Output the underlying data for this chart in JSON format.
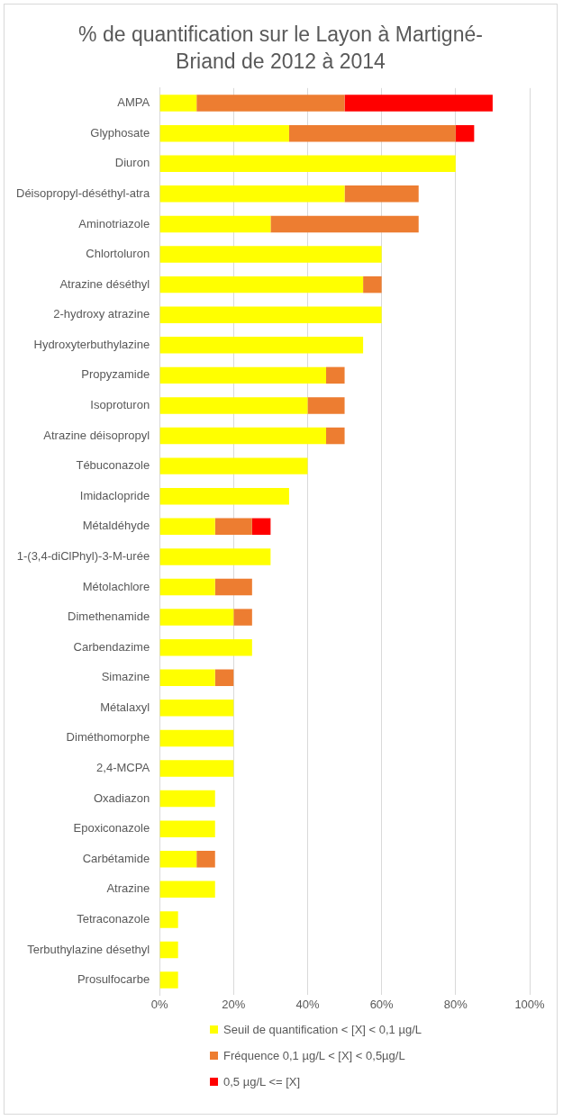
{
  "chart_data": {
    "type": "bar",
    "orientation": "horizontal",
    "stacked": true,
    "title": "% de quantification sur le Layon à Martigné-Briand de 2012 à 2014",
    "categories": [
      "AMPA",
      "Glyphosate",
      "Diuron",
      "Déisopropyl-déséthyl-atra",
      "Aminotriazole",
      "Chlortoluron",
      "Atrazine déséthyl",
      "2-hydroxy atrazine",
      "Hydroxyterbuthylazine",
      "Propyzamide",
      "Isoproturon",
      "Atrazine déisopropyl",
      "Tébuconazole",
      "Imidaclopride",
      "Métaldéhyde",
      "1-(3,4-diClPhyl)-3-M-urée",
      "Métolachlore",
      "Dimethenamide",
      "Carbendazime",
      "Simazine",
      "Métalaxyl",
      "Diméthomorphe",
      "2,4-MCPA",
      "Oxadiazon",
      "Epoxiconazole",
      "Carbétamide",
      "Atrazine",
      "Tetraconazole",
      "Terbuthylazine désethyl",
      "Prosulfocarbe"
    ],
    "series": [
      {
        "name": "Seuil de quantification < [X] < 0,1 µg/L",
        "color": "#ffff00",
        "values": [
          10,
          35,
          80,
          50,
          30,
          60,
          55,
          60,
          55,
          45,
          40,
          45,
          40,
          35,
          15,
          30,
          15,
          20,
          25,
          15,
          20,
          20,
          20,
          15,
          15,
          10,
          15,
          5,
          5,
          5
        ]
      },
      {
        "name": "Fréquence 0,1 µg/L < [X] < 0,5µg/L",
        "color": "#ed7d31",
        "values": [
          40,
          45,
          null,
          20,
          40,
          null,
          5,
          null,
          null,
          5,
          10,
          5,
          null,
          null,
          10,
          null,
          10,
          5,
          null,
          5,
          null,
          null,
          null,
          null,
          null,
          5,
          null,
          null,
          null,
          null
        ]
      },
      {
        "name": "0,5 µg/L <= [X]",
        "color": "#ff0000",
        "values": [
          40,
          5,
          null,
          null,
          null,
          null,
          null,
          null,
          null,
          null,
          null,
          null,
          null,
          null,
          5,
          null,
          null,
          null,
          null,
          null,
          null,
          null,
          null,
          null,
          null,
          null,
          null,
          null,
          null,
          null
        ]
      }
    ],
    "xlim": [
      0,
      100
    ],
    "xticks": [
      {
        "value": 0,
        "label": "0%"
      },
      {
        "value": 20,
        "label": "20%"
      },
      {
        "value": 40,
        "label": "40%"
      },
      {
        "value": 60,
        "label": "60%"
      },
      {
        "value": 80,
        "label": "80%"
      },
      {
        "value": 100,
        "label": "100%"
      }
    ],
    "grid": "x",
    "legend": "bottom"
  }
}
